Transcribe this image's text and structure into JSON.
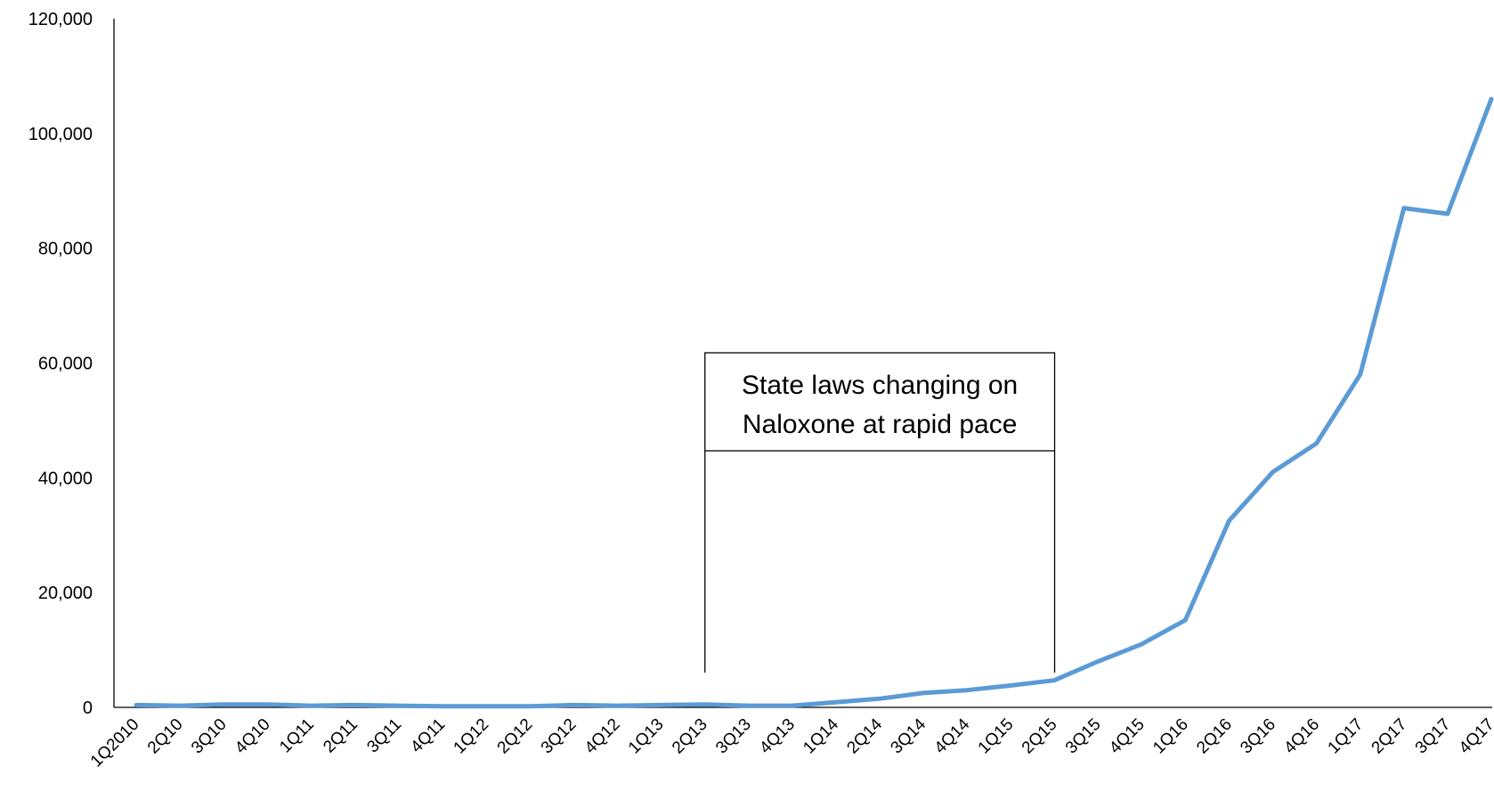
{
  "chart_data": {
    "type": "line",
    "title": "",
    "xlabel": "",
    "ylabel": "",
    "ylim": [
      0,
      120000
    ],
    "y_ticks": [
      "0",
      "20,000",
      "40,000",
      "60,000",
      "80,000",
      "100,000",
      "120,000"
    ],
    "y_tick_values": [
      0,
      20000,
      40000,
      60000,
      80000,
      100000,
      120000
    ],
    "grid": false,
    "legend": "none",
    "line_color": "#5B9BD5",
    "categories": [
      "1Q2010",
      "2Q10",
      "3Q10",
      "4Q10",
      "1Q11",
      "2Q11",
      "3Q11",
      "4Q11",
      "1Q12",
      "2Q12",
      "3Q12",
      "4Q12",
      "1Q13",
      "2Q13",
      "3Q13",
      "4Q13",
      "1Q14",
      "2Q14",
      "3Q14",
      "4Q14",
      "1Q15",
      "2Q15",
      "3Q15",
      "4Q15",
      "1Q16",
      "2Q16",
      "3Q16",
      "4Q16",
      "1Q17",
      "2Q17",
      "3Q17",
      "4Q17"
    ],
    "values": [
      400,
      300,
      500,
      500,
      300,
      400,
      300,
      200,
      200,
      200,
      400,
      300,
      400,
      500,
      300,
      300,
      900,
      1500,
      2500,
      3000,
      3800,
      4700,
      8000,
      11000,
      15200,
      32500,
      41000,
      46000,
      58000,
      87000,
      86000,
      106000
    ],
    "annotation": {
      "lines": [
        "State laws changing on",
        "Naloxone at rapid pace"
      ],
      "from_category": "2Q13",
      "to_category": "2Q15"
    }
  }
}
